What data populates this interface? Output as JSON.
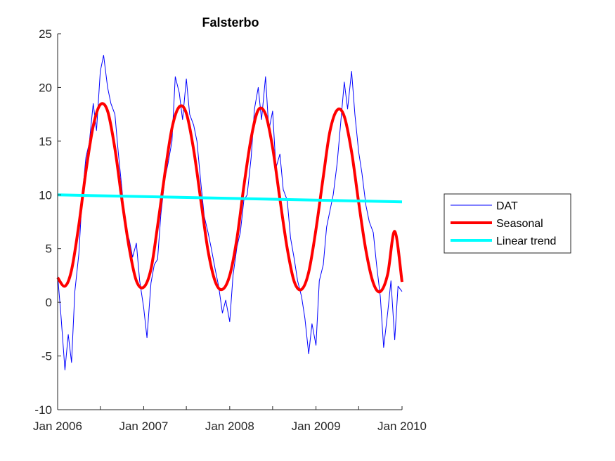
{
  "chart_data": {
    "type": "line",
    "title": "Falsterbo",
    "xlabel": "",
    "ylabel": "",
    "x_range": [
      "2006-01-01",
      "2010-01-01"
    ],
    "x_ticks": [
      {
        "date": "2006-01-01",
        "label": "Jan 2006"
      },
      {
        "date": "2006-07-01",
        "label": ""
      },
      {
        "date": "2007-01-01",
        "label": "Jan 2007"
      },
      {
        "date": "2007-07-01",
        "label": ""
      },
      {
        "date": "2008-01-01",
        "label": "Jan 2008"
      },
      {
        "date": "2008-07-01",
        "label": ""
      },
      {
        "date": "2009-01-01",
        "label": "Jan 2009"
      },
      {
        "date": "2009-07-01",
        "label": ""
      },
      {
        "date": "2010-01-01",
        "label": "Jan 2010"
      }
    ],
    "ylim": [
      -10,
      25
    ],
    "y_ticks": [
      -10,
      -5,
      0,
      5,
      10,
      15,
      20,
      25
    ],
    "grid": false,
    "legend_position": "right",
    "series": [
      {
        "name": "DAT",
        "style": "line",
        "color": "#0000ff",
        "x": [
          "2006-01-01",
          "2006-01-15",
          "2006-02-01",
          "2006-02-15",
          "2006-03-01",
          "2006-03-15",
          "2006-04-01",
          "2006-04-15",
          "2006-05-01",
          "2006-05-15",
          "2006-06-01",
          "2006-06-15",
          "2006-07-01",
          "2006-07-15",
          "2006-08-01",
          "2006-08-15",
          "2006-09-01",
          "2006-09-15",
          "2006-10-01",
          "2006-10-15",
          "2006-11-01",
          "2006-11-15",
          "2006-12-01",
          "2006-12-15",
          "2007-01-01",
          "2007-01-15",
          "2007-02-01",
          "2007-02-15",
          "2007-03-01",
          "2007-03-15",
          "2007-04-01",
          "2007-04-15",
          "2007-05-01",
          "2007-05-15",
          "2007-06-01",
          "2007-06-15",
          "2007-07-01",
          "2007-07-15",
          "2007-08-01",
          "2007-08-15",
          "2007-09-01",
          "2007-09-15",
          "2007-10-01",
          "2007-10-15",
          "2007-11-01",
          "2007-11-15",
          "2007-12-01",
          "2007-12-15",
          "2008-01-01",
          "2008-01-15",
          "2008-02-01",
          "2008-02-15",
          "2008-03-01",
          "2008-03-15",
          "2008-04-01",
          "2008-04-15",
          "2008-05-01",
          "2008-05-15",
          "2008-06-01",
          "2008-06-15",
          "2008-07-01",
          "2008-07-15",
          "2008-08-01",
          "2008-08-15",
          "2008-09-01",
          "2008-09-15",
          "2008-10-01",
          "2008-10-15",
          "2008-11-01",
          "2008-11-15",
          "2008-12-01",
          "2008-12-15",
          "2009-01-01",
          "2009-01-15",
          "2009-02-01",
          "2009-02-15",
          "2009-03-01",
          "2009-03-15",
          "2009-04-01",
          "2009-04-15",
          "2009-05-01",
          "2009-05-15",
          "2009-06-01",
          "2009-06-15",
          "2009-07-01",
          "2009-07-15",
          "2009-08-01",
          "2009-08-15",
          "2009-09-01",
          "2009-09-15",
          "2009-10-01",
          "2009-10-15",
          "2009-11-01",
          "2009-11-15",
          "2009-12-01",
          "2009-12-15",
          "2010-01-01"
        ],
        "y": [
          2.5,
          -1.2,
          -6.3,
          -3.0,
          -5.6,
          1.0,
          4.5,
          9.8,
          13.5,
          14.8,
          18.5,
          16.0,
          21.5,
          23.0,
          20.0,
          18.5,
          17.5,
          14.0,
          10.5,
          7.0,
          5.8,
          4.2,
          5.5,
          2.0,
          -0.5,
          -3.3,
          1.8,
          3.5,
          4.0,
          8.2,
          11.5,
          13.0,
          15.0,
          21.0,
          19.5,
          17.0,
          20.8,
          17.5,
          16.5,
          15.0,
          11.0,
          8.0,
          6.5,
          5.0,
          3.0,
          1.5,
          -1.0,
          0.2,
          -1.8,
          2.5,
          5.2,
          6.5,
          9.5,
          10.0,
          13.5,
          18.0,
          20.0,
          17.0,
          21.0,
          16.0,
          17.8,
          12.5,
          13.8,
          10.5,
          9.5,
          6.0,
          4.0,
          2.0,
          0.5,
          -1.5,
          -4.8,
          -2.0,
          -4.0,
          2.0,
          3.5,
          7.0,
          8.5,
          10.0,
          13.0,
          16.5,
          20.5,
          18.0,
          21.5,
          17.5,
          14.0,
          12.0,
          9.0,
          7.5,
          6.5,
          3.5,
          0.5,
          -4.2,
          -1.0,
          2.0,
          -3.5,
          1.5,
          1.0
        ]
      },
      {
        "name": "Seasonal",
        "style": "line",
        "color": "#ff0000",
        "x": [
          "2006-01-01",
          "2006-02-01",
          "2006-03-01",
          "2006-04-01",
          "2006-05-01",
          "2006-06-01",
          "2006-07-01",
          "2006-08-01",
          "2006-09-01",
          "2006-10-01",
          "2006-11-01",
          "2006-12-01",
          "2007-01-01",
          "2007-02-01",
          "2007-03-01",
          "2007-04-01",
          "2007-05-01",
          "2007-06-01",
          "2007-07-01",
          "2007-08-01",
          "2007-09-01",
          "2007-10-01",
          "2007-11-01",
          "2007-12-01",
          "2008-01-01",
          "2008-02-01",
          "2008-03-01",
          "2008-04-01",
          "2008-05-01",
          "2008-06-01",
          "2008-07-01",
          "2008-08-01",
          "2008-09-01",
          "2008-10-01",
          "2008-11-01",
          "2008-12-01",
          "2009-01-01",
          "2009-02-01",
          "2009-03-01",
          "2009-04-01",
          "2009-05-01",
          "2009-06-01",
          "2009-07-01",
          "2009-08-01",
          "2009-09-01",
          "2009-10-01",
          "2009-11-01",
          "2009-12-01",
          "2010-01-01"
        ],
        "y": [
          2.3,
          1.5,
          3.0,
          7.2,
          12.2,
          16.4,
          18.4,
          17.8,
          14.3,
          9.5,
          5.0,
          2.0,
          1.4,
          3.1,
          7.1,
          12.0,
          16.2,
          18.2,
          17.6,
          14.2,
          9.4,
          4.8,
          1.9,
          1.2,
          2.5,
          6.0,
          10.8,
          15.3,
          17.9,
          17.5,
          14.4,
          9.6,
          5.0,
          1.9,
          1.2,
          2.8,
          6.8,
          11.7,
          15.9,
          17.9,
          17.3,
          14.0,
          9.3,
          4.8,
          1.8,
          1.0,
          2.6,
          6.6,
          1.9
        ]
      },
      {
        "name": "Linear trend",
        "style": "line",
        "color": "#00ffff",
        "x": [
          "2006-01-01",
          "2010-01-01"
        ],
        "y": [
          10.0,
          9.35
        ]
      }
    ]
  }
}
